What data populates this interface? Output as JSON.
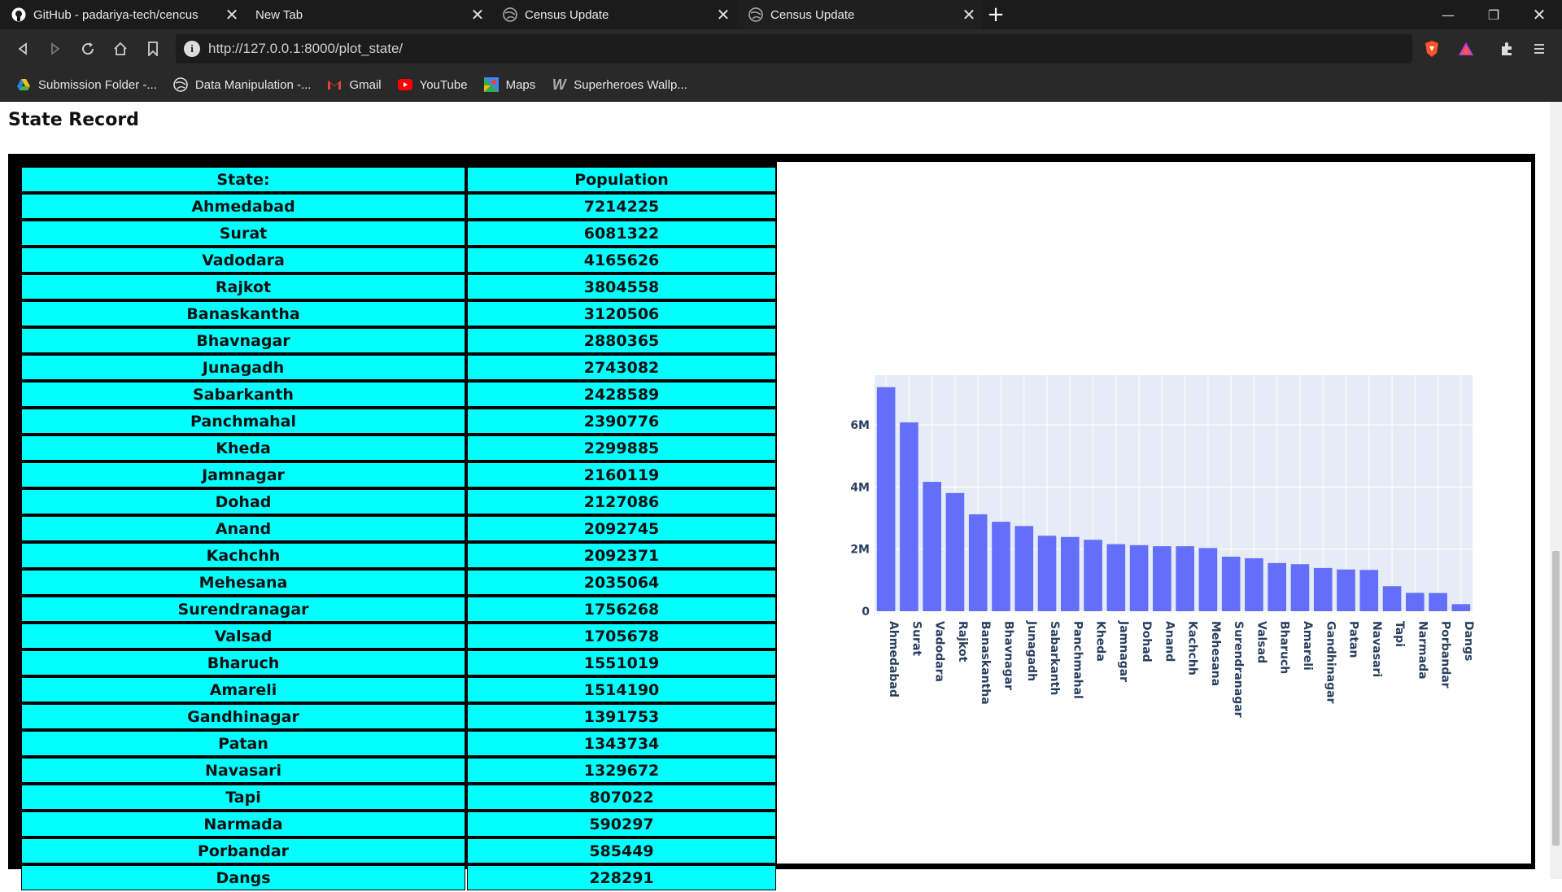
{
  "browser": {
    "tabs": [
      {
        "label": "GitHub - padariya-tech/cencus",
        "icon": "github-icon",
        "active": false
      },
      {
        "label": "New Tab",
        "icon": "none",
        "active": false
      },
      {
        "label": "Census Update",
        "icon": "globe-icon",
        "active": false
      },
      {
        "label": "Census Update",
        "icon": "globe-icon",
        "active": true
      }
    ],
    "url": "http://127.0.0.1:8000/plot_state/",
    "bookmarks": [
      {
        "label": "Submission Folder -...",
        "icon": "google-drive-icon"
      },
      {
        "label": "Data Manipulation -...",
        "icon": "globe-icon"
      },
      {
        "label": "Gmail",
        "icon": "gmail-icon"
      },
      {
        "label": "YouTube",
        "icon": "youtube-icon"
      },
      {
        "label": "Maps",
        "icon": "maps-icon"
      },
      {
        "label": "Superheroes Wallp...",
        "icon": "wallpaper-icon"
      }
    ]
  },
  "page": {
    "title": "State Record",
    "table": {
      "headers": [
        "State:",
        "Population"
      ],
      "rows": [
        [
          "Ahmedabad",
          "7214225"
        ],
        [
          "Surat",
          "6081322"
        ],
        [
          "Vadodara",
          "4165626"
        ],
        [
          "Rajkot",
          "3804558"
        ],
        [
          "Banaskantha",
          "3120506"
        ],
        [
          "Bhavnagar",
          "2880365"
        ],
        [
          "Junagadh",
          "2743082"
        ],
        [
          "Sabarkanth",
          "2428589"
        ],
        [
          "Panchmahal",
          "2390776"
        ],
        [
          "Kheda",
          "2299885"
        ],
        [
          "Jamnagar",
          "2160119"
        ],
        [
          "Dohad",
          "2127086"
        ],
        [
          "Anand",
          "2092745"
        ],
        [
          "Kachchh",
          "2092371"
        ],
        [
          "Mehesana",
          "2035064"
        ],
        [
          "Surendranagar",
          "1756268"
        ],
        [
          "Valsad",
          "1705678"
        ],
        [
          "Bharuch",
          "1551019"
        ],
        [
          "Amareli",
          "1514190"
        ],
        [
          "Gandhinagar",
          "1391753"
        ],
        [
          "Patan",
          "1343734"
        ],
        [
          "Navasari",
          "1329672"
        ],
        [
          "Tapi",
          "807022"
        ],
        [
          "Narmada",
          "590297"
        ],
        [
          "Porbandar",
          "585449"
        ],
        [
          "Dangs",
          "228291"
        ]
      ]
    }
  },
  "colors": {
    "table_cell": "#00ffff",
    "bar": "#636efa",
    "plot_bg": "#e5ecf6"
  },
  "chart_data": {
    "type": "bar",
    "categories": [
      "Ahmedabad",
      "Surat",
      "Vadodara",
      "Rajkot",
      "Banaskantha",
      "Bhavnagar",
      "Junagadh",
      "Sabarkanth",
      "Panchmahal",
      "Kheda",
      "Jamnagar",
      "Dohad",
      "Anand",
      "Kachchh",
      "Mehesana",
      "Surendranagar",
      "Valsad",
      "Bharuch",
      "Amareli",
      "Gandhinagar",
      "Patan",
      "Navasari",
      "Tapi",
      "Narmada",
      "Porbandar",
      "Dangs"
    ],
    "values": [
      7214225,
      6081322,
      4165626,
      3804558,
      3120506,
      2880365,
      2743082,
      2428589,
      2390776,
      2299885,
      2160119,
      2127086,
      2092745,
      2092371,
      2035064,
      1756268,
      1705678,
      1551019,
      1514190,
      1391753,
      1343734,
      1329672,
      807022,
      590297,
      585449,
      228291
    ],
    "yticks": [
      0,
      2000000,
      4000000,
      6000000
    ],
    "ytick_labels": [
      "0",
      "2M",
      "4M",
      "6M"
    ],
    "ylim": [
      0,
      7600000
    ],
    "grid": true,
    "title": "",
    "xlabel": "",
    "ylabel": ""
  }
}
